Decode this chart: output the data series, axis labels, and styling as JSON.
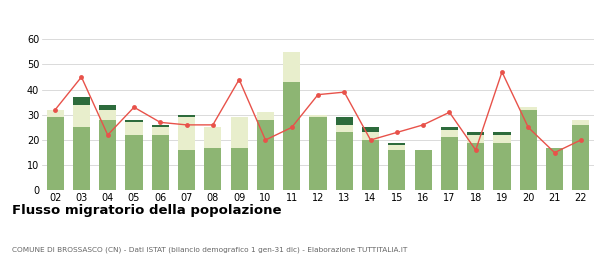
{
  "years": [
    "02",
    "03",
    "04",
    "05",
    "06",
    "07",
    "08",
    "09",
    "10",
    "11",
    "12",
    "13",
    "14",
    "15",
    "16",
    "17",
    "18",
    "19",
    "20",
    "21",
    "22"
  ],
  "iscritti_altri_comuni": [
    29,
    25,
    28,
    22,
    22,
    16,
    17,
    17,
    28,
    43,
    29,
    23,
    20,
    16,
    16,
    21,
    19,
    19,
    32,
    17,
    26
  ],
  "iscritti_estero": [
    3,
    9,
    4,
    5,
    3,
    13,
    8,
    12,
    3,
    12,
    1,
    3,
    3,
    2,
    0,
    3,
    3,
    3,
    1,
    0,
    2
  ],
  "iscritti_altri": [
    0,
    3,
    2,
    1,
    1,
    1,
    0,
    0,
    0,
    0,
    0,
    3,
    2,
    1,
    0,
    1,
    1,
    1,
    0,
    0,
    0
  ],
  "cancellati": [
    32,
    45,
    22,
    33,
    27,
    26,
    26,
    44,
    20,
    25,
    38,
    39,
    20,
    23,
    26,
    31,
    16,
    47,
    25,
    15,
    20
  ],
  "color_altri_comuni": "#8db573",
  "color_estero": "#e8eecc",
  "color_altri": "#2d6b3c",
  "color_cancellati": "#e8524a",
  "title": "Flusso migratorio della popolazione",
  "subtitle": "COMUNE DI BROSSASCO (CN) - Dati ISTAT (bilancio demografico 1 gen-31 dic) - Elaborazione TUTTITALIA.IT",
  "ylim": [
    0,
    60
  ],
  "yticks": [
    0,
    10,
    20,
    30,
    40,
    50,
    60
  ]
}
